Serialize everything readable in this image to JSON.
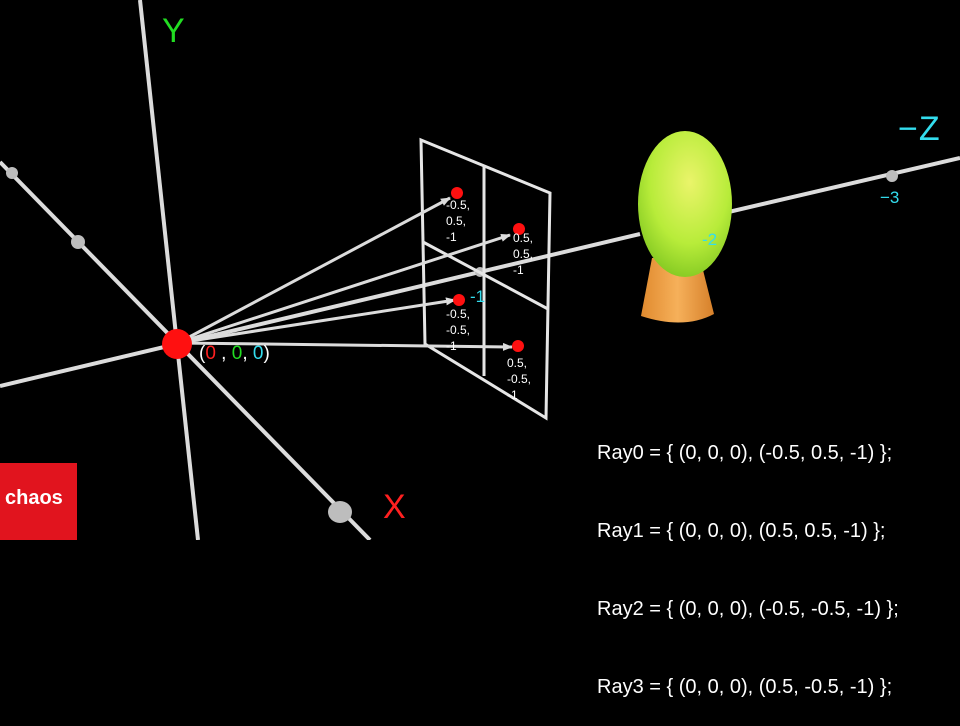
{
  "colors": {
    "background": "#000000",
    "axis_line": "#dcdcdc",
    "x_label": "#ff2020",
    "y_label": "#22dd22",
    "z_label": "#33ddee",
    "origin_point": "#ff1010",
    "sample_point": "#ff1010",
    "egg_green": "#b8ec3a",
    "cone_orange": "#f2a24a",
    "logo_red": "#e1141e"
  },
  "axes": {
    "x_label": "X",
    "y_label": "Y",
    "z_label": "−Z"
  },
  "z_ticks": [
    "-1",
    "-2",
    "−3"
  ],
  "origin": {
    "open": "(",
    "x": "0",
    "sep1": " , ",
    "y": "0",
    "sep2": ", ",
    "z": "0",
    "close": ")"
  },
  "image_plane_points": [
    {
      "lines": [
        "-0.5,",
        "0.5,",
        "-1"
      ]
    },
    {
      "lines": [
        "0.5,",
        "0.5,",
        "-1"
      ]
    },
    {
      "lines": [
        "-0.5,",
        "-0.5,",
        "-1"
      ]
    },
    {
      "lines": [
        "0.5,",
        "-0.5,",
        "-1"
      ]
    }
  ],
  "rays": [
    "Ray0 = { (0, 0, 0), (-0.5, 0.5, -1) };",
    "Ray1 = { (0, 0, 0), (0.5, 0.5, -1) };",
    "Ray2 = { (0, 0, 0), (-0.5, -0.5, -1) };",
    "Ray3 = { (0, 0, 0), (0.5, -0.5, -1) };"
  ],
  "logo": {
    "text": "chaos"
  }
}
